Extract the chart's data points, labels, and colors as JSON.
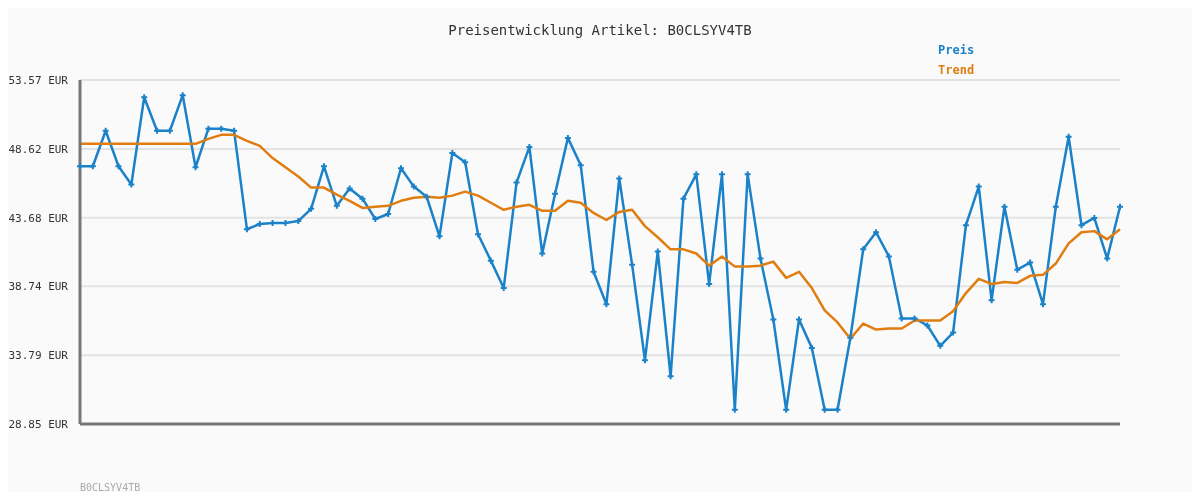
{
  "chart_data": {
    "type": "line",
    "title": "Preisentwicklung Artikel: B0CLSYV4TB",
    "categories": [
      null,
      null,
      null,
      null,
      null,
      null,
      null,
      null,
      null,
      null,
      null,
      null,
      null,
      null,
      null,
      null,
      null,
      null,
      null,
      null,
      null,
      null,
      null,
      null,
      null,
      null,
      null,
      null,
      null,
      null,
      null,
      null,
      null,
      null,
      null,
      null,
      null,
      null,
      null,
      null,
      null,
      null,
      null,
      null,
      null,
      null,
      null,
      null,
      null,
      null,
      null,
      null,
      null,
      null,
      null,
      null,
      null,
      null,
      null,
      null,
      null,
      null,
      null,
      null,
      null,
      null,
      null,
      null,
      null,
      null,
      null,
      null,
      null,
      null,
      null,
      null,
      null,
      null,
      null,
      null,
      null,
      null
    ],
    "series": [
      {
        "name": "Preis",
        "color": "#1b82c9",
        "marker": "cross",
        "values": [
          47.37,
          47.37,
          49.92,
          47.37,
          46.06,
          52.33,
          49.92,
          49.92,
          52.48,
          47.3,
          50.07,
          50.07,
          49.92,
          42.85,
          43.22,
          43.29,
          43.29,
          43.43,
          44.31,
          47.37,
          44.53,
          45.77,
          45.04,
          43.58,
          43.94,
          47.23,
          45.91,
          45.18,
          42.34,
          48.32,
          47.66,
          42.49,
          40.59,
          38.62,
          46.2,
          48.76,
          41.1,
          45.4,
          49.41,
          47.44,
          39.79,
          37.46,
          46.5,
          40.3,
          33.44,
          41.25,
          32.28,
          45.04,
          46.79,
          38.91,
          46.79,
          29.87,
          46.79,
          40.74,
          36.36,
          29.87,
          36.36,
          34.32,
          29.87,
          29.87,
          35.05,
          41.4,
          42.63,
          40.89,
          36.44,
          36.44,
          35.93,
          34.47,
          35.42,
          43.14,
          45.91,
          37.75,
          44.46,
          39.94,
          40.45,
          37.46,
          44.46,
          49.49,
          43.14,
          43.66,
          40.74,
          44.46
        ]
      },
      {
        "name": "Trend",
        "color": "#e07d10",
        "marker": "none",
        "values": [
          48.98,
          48.98,
          48.98,
          48.98,
          48.98,
          48.98,
          48.98,
          48.98,
          48.98,
          48.98,
          49.34,
          49.63,
          49.63,
          49.2,
          48.83,
          47.96,
          47.3,
          46.64,
          45.84,
          45.84,
          45.33,
          44.89,
          44.38,
          44.46,
          44.53,
          44.89,
          45.11,
          45.18,
          45.11,
          45.26,
          45.55,
          45.26,
          44.75,
          44.24,
          44.46,
          44.6,
          44.17,
          44.17,
          44.89,
          44.75,
          44.02,
          43.51,
          44.09,
          44.24,
          43.07,
          42.27,
          41.4,
          41.4,
          41.1,
          40.23,
          40.89,
          40.16,
          40.16,
          40.23,
          40.52,
          39.35,
          39.79,
          38.62,
          37.02,
          36.15,
          34.98,
          36.07,
          35.64,
          35.71,
          35.71,
          36.29,
          36.29,
          36.29,
          36.95,
          38.26,
          39.28,
          38.91,
          39.06,
          38.99,
          39.5,
          39.57,
          40.38,
          41.83,
          42.63,
          42.71,
          42.12,
          42.85
        ]
      }
    ],
    "ylim": [
      28.85,
      53.57
    ],
    "yticks": [
      {
        "value": 28.85,
        "label": "28.85 EUR"
      },
      {
        "value": 33.79,
        "label": "33.79 EUR"
      },
      {
        "value": 38.74,
        "label": "38.74 EUR"
      },
      {
        "value": 43.68,
        "label": "43.68 EUR"
      },
      {
        "value": 48.62,
        "label": "48.62 EUR"
      },
      {
        "value": 53.57,
        "label": "53.57 EUR"
      }
    ],
    "grid": "y",
    "legend": "top right",
    "annotations": [
      "B0CLSYV4TB"
    ]
  }
}
